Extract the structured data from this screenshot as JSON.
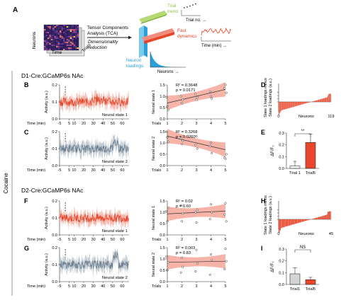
{
  "panelA": {
    "label": "A",
    "neurons": "Neurons",
    "time": "Time",
    "trials": "Trials",
    "tca1": "Tensor Components",
    "tca2": "Analysis (TCA)",
    "dim1": "Dimensionality",
    "dim2": "reduction",
    "trial_trend1": "Trial",
    "trial_trend2": "trend",
    "trial_no": "Trial no. →",
    "fast1": "Fast",
    "fast2": "dynamics",
    "time_min": "Time (min) →",
    "neuron1": "Neuron",
    "neuron2": "loadings",
    "neurons_arrow": "Neurons →"
  },
  "side_label": "Cocaine",
  "section1": "D1-Cre:GCaMP6s NAc",
  "section2": "D2-Cre:GCaMP6s NAc",
  "labels": {
    "B": "B",
    "C": "C",
    "D": "D",
    "E": "E",
    "F": "F",
    "G": "G",
    "H": "H",
    "I": "I"
  },
  "traces": {
    "activity_label": "Activity (a.u.)",
    "time_label": "Time (min)",
    "xticks": [
      "-5",
      "5",
      "10",
      "20",
      "30",
      "40",
      "50",
      "60"
    ],
    "B": {
      "state": "Neural state 1",
      "yticks": [
        "0.0",
        "0.1",
        "0.2"
      ]
    },
    "C": {
      "state": "Neural state 2",
      "yticks": [
        "0.0",
        "0.1",
        "0.2"
      ]
    },
    "F": {
      "state": "Neural state 1",
      "yticks": [
        "0.0",
        "0.1",
        "0.2"
      ]
    },
    "G": {
      "state": "Neural state 2",
      "yticks": [
        "0.0",
        "0.1",
        "0.2"
      ]
    }
  },
  "reg": {
    "trials_label": "Trials",
    "xticks": [
      "1",
      "2",
      "3",
      "4",
      "5"
    ],
    "yticks": [
      "0.0",
      "0.5",
      "1.0",
      "1.5"
    ],
    "B": {
      "ylabel": "Neural state 1",
      "r2": "R² = 0.3648",
      "p": "p = 0.0171"
    },
    "C": {
      "ylabel": "Neural state 2",
      "r2": "R² = 0.3268",
      "p": "p = 0.0260"
    },
    "F": {
      "ylabel": "Neural state 1",
      "r2": "R² = 0.02",
      "p": "p = 0.60"
    },
    "G": {
      "ylabel": "Neural state 2",
      "r2": "R² = 0.003",
      "p": "p = 0.83"
    }
  },
  "loadings": {
    "D": {
      "ylabel1": "State 1 loadings minus",
      "ylabel2": "State 2 loadings (a.u.)",
      "yticks": [
        "0.0",
        "0.2",
        "0.4",
        "0.6"
      ],
      "xlabel": "Neurons",
      "xmin": "0",
      "xmax": "119"
    },
    "H": {
      "ylabel1": "State 1 loadings minus",
      "ylabel2": "State 2 loadings (a.u.)",
      "yticks": [
        "0.0",
        "0.2",
        "0.4",
        "0.6"
      ],
      "xlabel": "Neurons",
      "xmin": "0",
      "xmax": "45"
    }
  },
  "bars": {
    "ylabel": "ΔF/F₀",
    "E": {
      "yticks": [
        "0.0",
        "0.1",
        "0.2",
        "0.3"
      ],
      "cats": [
        "Trial 1",
        "Trial5"
      ],
      "sig": "**"
    },
    "I": {
      "yticks": [
        "0.0",
        "0.1",
        "0.2",
        "0.3"
      ],
      "cats": [
        "Trial1",
        "Trial5"
      ],
      "sig": "NS"
    }
  },
  "colors": {
    "red": "#e8452a",
    "pink": "#f4a79a",
    "gray": "#6d7f8e",
    "lightgray": "#b4bec8",
    "blue": "#2aa0d8",
    "green": "#8cc63f"
  },
  "chart_data": [
    {
      "panel": "E",
      "type": "bar",
      "categories": [
        "Trial 1",
        "Trial5"
      ],
      "values": [
        0.02,
        0.22
      ],
      "errors": [
        0.04,
        0.07
      ],
      "ylim": [
        0,
        0.3
      ],
      "ylabel": "ΔF/F₀"
    },
    {
      "panel": "I",
      "type": "bar",
      "categories": [
        "Trial1",
        "Trial5"
      ],
      "values": [
        0.09,
        0.04
      ],
      "errors": [
        0.05,
        0.02
      ],
      "ylim": [
        0,
        0.3
      ],
      "ylabel": "ΔF/F₀"
    },
    {
      "panel": "B",
      "type": "scatter",
      "xlabel": "Trials",
      "ylabel": "Neural state 1",
      "x": [
        1,
        1,
        1,
        2,
        2,
        2,
        3,
        3,
        3,
        4,
        4,
        4,
        5,
        5,
        5
      ],
      "y": [
        0.95,
        0.55,
        0.4,
        1.0,
        0.7,
        0.85,
        1.1,
        0.85,
        0.95,
        1.2,
        1.0,
        0.9,
        1.35,
        1.5,
        1.15
      ],
      "fit": [
        0.7,
        1.3
      ]
    },
    {
      "panel": "C",
      "type": "scatter",
      "xlabel": "Trials",
      "ylabel": "Neural state 2",
      "x": [
        1,
        1,
        1,
        2,
        2,
        2,
        3,
        3,
        3,
        4,
        4,
        4,
        5,
        5,
        5
      ],
      "y": [
        1.5,
        1.25,
        1.05,
        1.2,
        0.95,
        1.1,
        0.9,
        1.3,
        0.75,
        0.85,
        1.0,
        0.55,
        0.35,
        0.3,
        0.5
      ],
      "fit": [
        1.3,
        0.7
      ]
    },
    {
      "panel": "F",
      "type": "scatter",
      "xlabel": "Trials",
      "ylabel": "Neural state 1",
      "x": [
        1,
        1,
        1,
        2,
        2,
        2,
        3,
        3,
        3,
        4,
        4,
        4,
        5,
        5,
        5
      ],
      "y": [
        1.05,
        0.6,
        1.2,
        1.3,
        0.6,
        0.95,
        1.0,
        0.55,
        1.1,
        0.7,
        1.35,
        1.0,
        0.9,
        1.4,
        0.6
      ],
      "fit": [
        0.93,
        1.05
      ]
    },
    {
      "panel": "G",
      "type": "scatter",
      "xlabel": "Trials",
      "ylabel": "Neural state 2",
      "x": [
        1,
        1,
        1,
        2,
        2,
        2,
        3,
        3,
        3,
        4,
        4,
        4,
        5,
        5,
        5
      ],
      "y": [
        1.1,
        0.5,
        0.85,
        0.4,
        1.05,
        0.65,
        0.45,
        1.4,
        0.8,
        0.3,
        1.2,
        0.95,
        0.55,
        1.45,
        0.9
      ],
      "fit": [
        0.85,
        0.9
      ]
    }
  ]
}
